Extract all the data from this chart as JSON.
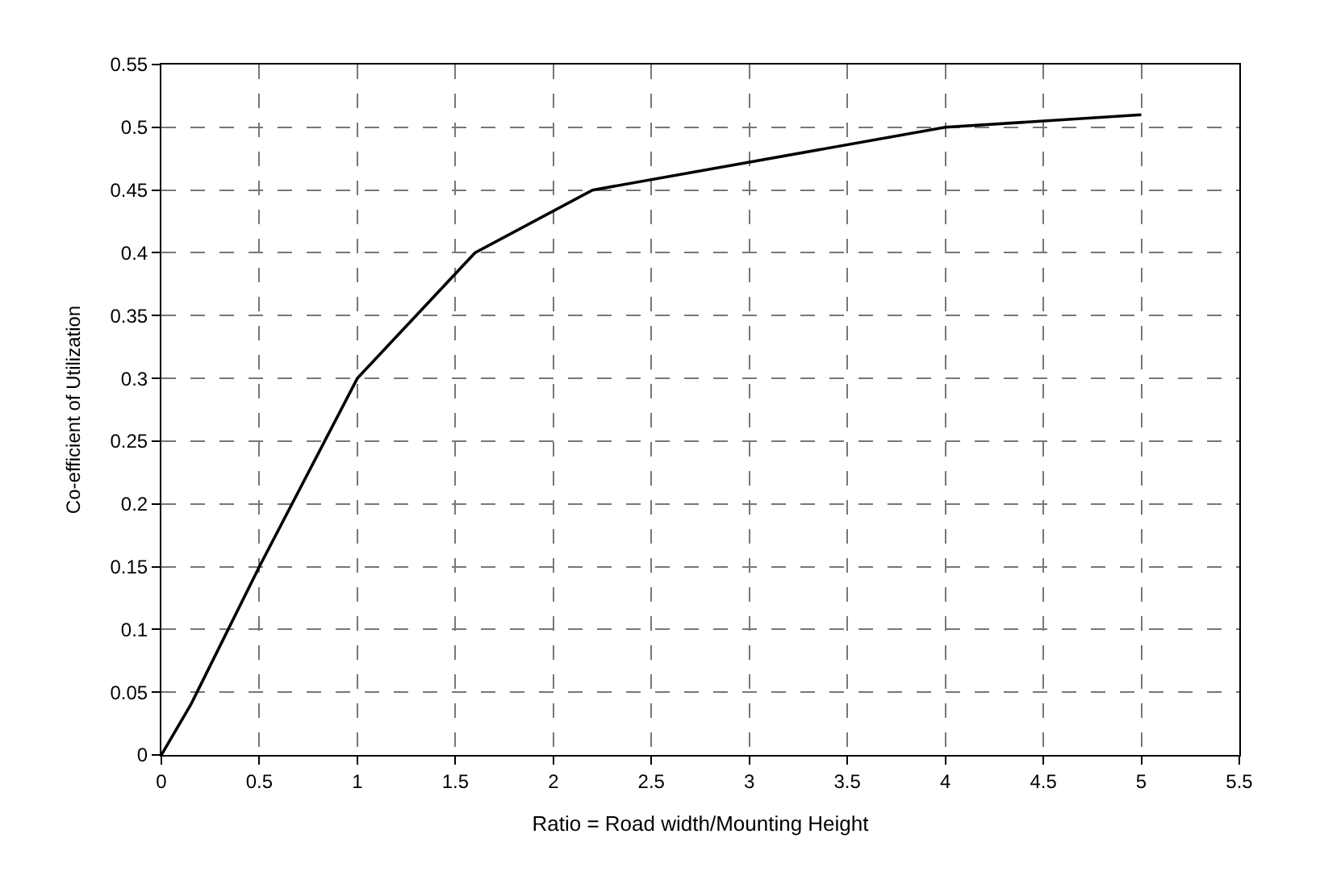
{
  "chart_data": {
    "type": "line",
    "xlabel": "Ratio = Road width/Mounting Height",
    "ylabel": "Co-efficient of Utilization",
    "x": [
      0,
      0.15,
      0.5,
      1,
      1.3,
      1.6,
      2.2,
      4,
      5
    ],
    "series": [
      {
        "color": "#000000",
        "values": [
          0,
          0.04,
          0.15,
          0.3,
          0.35,
          0.4,
          0.45,
          0.5,
          0.51
        ]
      }
    ],
    "xlim": [
      0,
      5.5
    ],
    "xticks": [
      0,
      0.5,
      1,
      1.5,
      2,
      2.5,
      3,
      3.5,
      4,
      4.5,
      5,
      5.5
    ],
    "ylim": [
      0,
      0.55
    ],
    "yticks": [
      0,
      0.05,
      0.1,
      0.15,
      0.2,
      0.25,
      0.3,
      0.35,
      0.4,
      0.45,
      0.5,
      0.55
    ],
    "grid": true,
    "marker": "none",
    "line_style": "solid"
  }
}
